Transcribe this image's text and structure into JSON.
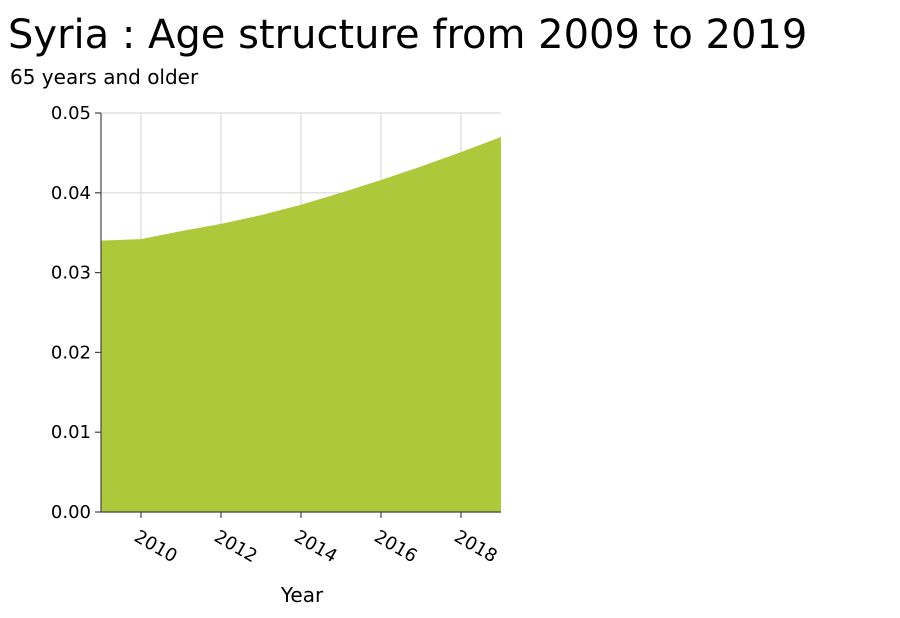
{
  "chart_data": {
    "type": "area",
    "title": "Syria : Age structure from 2009 to 2019",
    "subtitle": "65 years and older",
    "xlabel": "Year",
    "ylabel": "",
    "x": [
      2009,
      2010,
      2011,
      2012,
      2013,
      2014,
      2015,
      2016,
      2017,
      2018,
      2019
    ],
    "series": [
      {
        "values": [
          0.034,
          0.0342,
          0.0352,
          0.0361,
          0.0372,
          0.0385,
          0.04,
          0.0416,
          0.0433,
          0.0451,
          0.047
        ]
      }
    ],
    "xlim": [
      2009,
      2019
    ],
    "ylim": [
      0,
      0.05
    ],
    "x_ticks": [
      "2010",
      "2012",
      "2014",
      "2016",
      "2018"
    ],
    "y_ticks": [
      "0.00",
      "0.01",
      "0.02",
      "0.03",
      "0.04",
      "0.05"
    ],
    "grid": true,
    "fill_color": "#aec83c"
  }
}
